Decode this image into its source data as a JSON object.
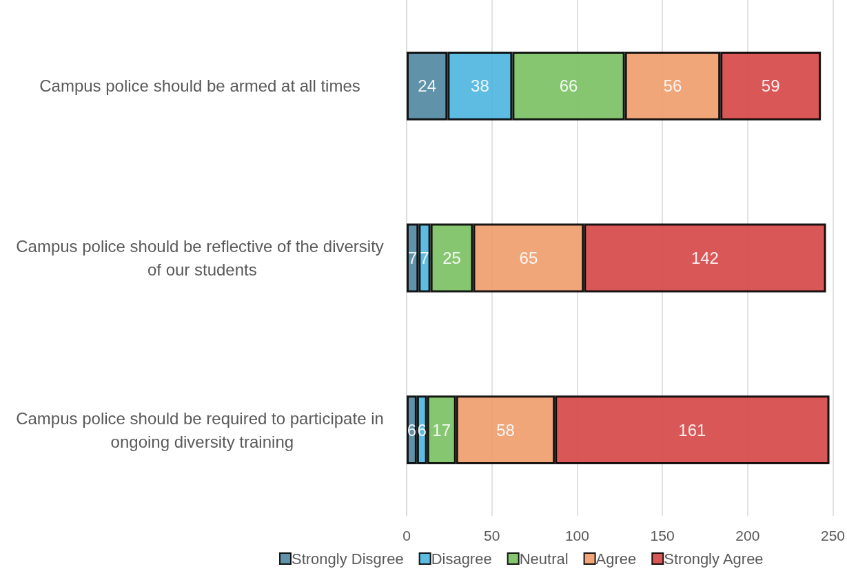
{
  "chart_data": {
    "type": "bar",
    "orientation": "horizontal",
    "stacked": true,
    "categories": [
      "Campus police should be armed at all times",
      "Campus police should be reflective of the diversity of our students",
      "Campus police should be required to participate in ongoing diversity training"
    ],
    "series": [
      {
        "name": "Strongly Disgree",
        "color": "#4f86a0",
        "values": [
          24,
          7,
          6
        ]
      },
      {
        "name": "Disagree",
        "color": "#4cb5e0",
        "values": [
          38,
          7,
          6
        ]
      },
      {
        "name": "Neutral",
        "color": "#79c062",
        "values": [
          66,
          25,
          17
        ]
      },
      {
        "name": "Agree",
        "color": "#f09c6c",
        "values": [
          56,
          65,
          58
        ]
      },
      {
        "name": "Strongly Agree",
        "color": "#d64545",
        "values": [
          59,
          142,
          161
        ]
      }
    ],
    "xlim": [
      0,
      250
    ],
    "xticks": [
      0,
      50,
      100,
      150,
      200,
      250
    ],
    "grid": "x",
    "legend": "bottom",
    "data_labels": true
  }
}
